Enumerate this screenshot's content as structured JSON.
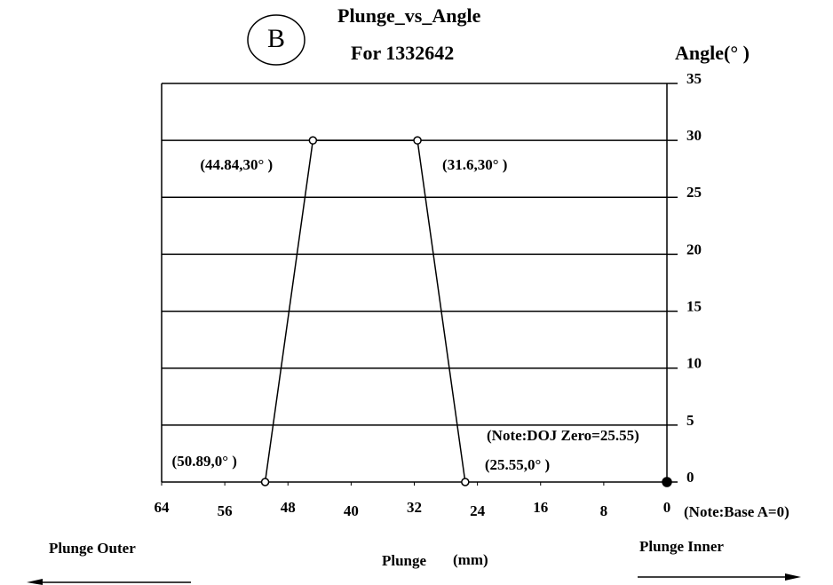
{
  "chart_data": {
    "type": "line",
    "badge": "B",
    "title": "Plunge_vs_Angle",
    "subtitle": "For 1332642",
    "y_label": "Angle(° )",
    "x_label": "Plunge",
    "x_unit": "(mm)",
    "notes": [
      "(Note:DOJ Zero=25.55)",
      "(Note:Base A=0)"
    ],
    "direction_labels": [
      "Plunge Outer",
      "Plunge Inner"
    ],
    "xlim": [
      64,
      0
    ],
    "xticks": [
      64,
      56,
      48,
      40,
      32,
      24,
      16,
      8,
      0
    ],
    "ylim": [
      0,
      35
    ],
    "yticks": [
      0,
      5,
      10,
      15,
      20,
      25,
      30,
      35
    ],
    "grid": true,
    "series": [
      {
        "color": "#000000",
        "x": [
          50.89,
          44.84,
          31.6,
          25.55
        ],
        "values": [
          0,
          30,
          30,
          0
        ],
        "value_labels": [
          "(50.89,0° )",
          "(44.84,30° )",
          "(31.6,30° )",
          "(25.55,0° )"
        ]
      },
      {
        "color": "#000000",
        "x": [
          0
        ],
        "values": [
          0
        ]
      }
    ]
  }
}
